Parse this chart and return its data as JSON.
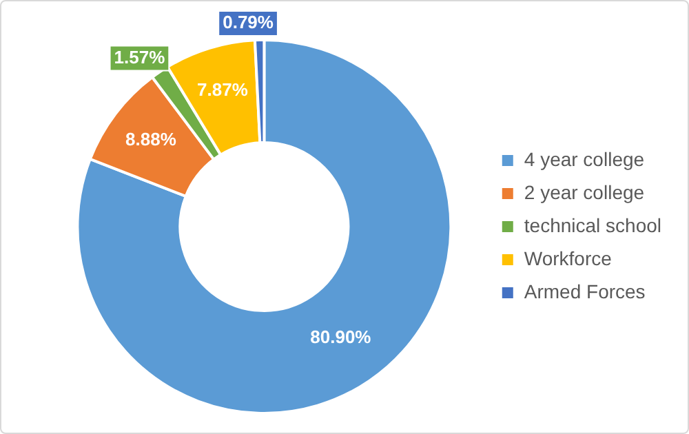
{
  "chart_data": {
    "type": "donut",
    "categories": [
      "4 year college",
      "2 year college",
      "technical school",
      "Workforce",
      "Armed Forces"
    ],
    "values": [
      80.9,
      8.88,
      1.57,
      7.87,
      0.79
    ],
    "value_labels": [
      "80.90%",
      "8.88%",
      "1.57%",
      "7.87%",
      "0.79%"
    ],
    "colors": [
      "#5b9bd5",
      "#ed7d31",
      "#70ad47",
      "#ffc000",
      "#4472c4"
    ],
    "legend": "right"
  }
}
